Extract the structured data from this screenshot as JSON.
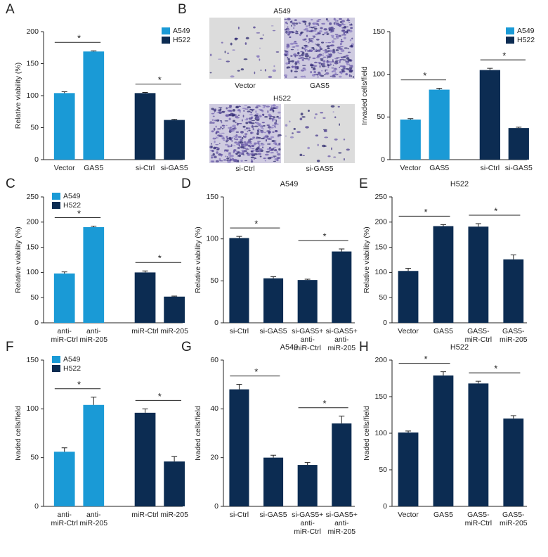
{
  "chart_data": [
    {
      "type": "bar",
      "panel": "A",
      "ylabel": "Relative viability (%)",
      "ylim": [
        0,
        200
      ],
      "yticks": [
        0,
        50,
        100,
        150,
        200
      ],
      "legend": "upper right",
      "categories": [
        [
          "Vector"
        ],
        [
          "GAS5"
        ],
        [
          "si-Ctrl"
        ],
        [
          "si-GAS5"
        ]
      ],
      "series": [
        {
          "name": "A549",
          "color": "#1a9ad6",
          "values": [
            104,
            169,
            null,
            null
          ],
          "errors": [
            2,
            1,
            null,
            null
          ]
        },
        {
          "name": "H522",
          "color": "#0c2c52",
          "values": [
            null,
            null,
            104,
            62
          ],
          "errors": [
            null,
            null,
            1,
            1
          ]
        }
      ],
      "annotations": [
        "*",
        "*"
      ]
    },
    {
      "type": "bar",
      "panel": "B",
      "ylabel": "Invaded cells/field",
      "ylim": [
        0,
        150
      ],
      "yticks": [
        0,
        50,
        100,
        150
      ],
      "legend": "upper right",
      "categories": [
        [
          "Vector"
        ],
        [
          "GAS5"
        ],
        [
          "si-Ctrl"
        ],
        [
          "si-GAS5"
        ]
      ],
      "series": [
        {
          "name": "A549",
          "color": "#1a9ad6",
          "values": [
            47,
            82,
            null,
            null
          ],
          "errors": [
            1,
            1.5,
            null,
            null
          ]
        },
        {
          "name": "H522",
          "color": "#0c2c52",
          "values": [
            null,
            null,
            105,
            37
          ],
          "errors": [
            null,
            null,
            2,
            1
          ]
        }
      ],
      "annotations": [
        "*",
        "*"
      ]
    },
    {
      "type": "bar",
      "panel": "C",
      "ylabel": "Relative viability (%)",
      "ylim": [
        0,
        250
      ],
      "yticks": [
        0,
        50,
        100,
        150,
        200,
        250
      ],
      "legend": "upper left",
      "categories": [
        [
          "anti-",
          "miR-Ctrl"
        ],
        [
          "anti-",
          "miR-205"
        ],
        [
          "miR-Ctrl"
        ],
        [
          "miR-205"
        ]
      ],
      "series": [
        {
          "name": "A549",
          "color": "#1a9ad6",
          "values": [
            98,
            190,
            null,
            null
          ],
          "errors": [
            3,
            2,
            null,
            null
          ]
        },
        {
          "name": "H522",
          "color": "#0c2c52",
          "values": [
            null,
            null,
            100,
            52
          ],
          "errors": [
            null,
            null,
            3,
            1
          ]
        }
      ],
      "annotations": [
        "*",
        "*"
      ]
    },
    {
      "type": "bar",
      "panel": "D",
      "title": "A549",
      "ylabel": "Relative viability (%)",
      "ylim": [
        0,
        150
      ],
      "yticks": [
        0,
        50,
        100,
        150
      ],
      "color": "#0c2c52",
      "categories": [
        [
          "si-Ctrl"
        ],
        [
          "si-GAS5"
        ],
        [
          "si-GAS5+",
          "anti-",
          "miR-Ctrl"
        ],
        [
          "si-GAS5+",
          "anti-",
          "miR-205"
        ]
      ],
      "values": [
        101,
        53,
        51,
        85
      ],
      "errors": [
        2,
        2,
        1,
        3
      ],
      "annotations": [
        "*",
        "*"
      ]
    },
    {
      "type": "bar",
      "panel": "E",
      "title": "H522",
      "ylabel": "Relative viability (%)",
      "ylim": [
        0,
        250
      ],
      "yticks": [
        0,
        50,
        100,
        150,
        200,
        250
      ],
      "color": "#0c2c52",
      "categories": [
        [
          "Vector"
        ],
        [
          "GAS5"
        ],
        [
          "GAS5-",
          "miR-Ctrl"
        ],
        [
          "GAS5-",
          "miR-205"
        ]
      ],
      "values": [
        103,
        192,
        191,
        126
      ],
      "errors": [
        5,
        3,
        6,
        9
      ],
      "annotations": [
        "*",
        "*"
      ]
    },
    {
      "type": "bar",
      "panel": "F",
      "ylabel": "Ivaded cells/field",
      "ylim": [
        0,
        150
      ],
      "yticks": [
        0,
        50,
        100,
        150
      ],
      "legend": "upper left",
      "categories": [
        [
          "anti-",
          "miR-Ctrl"
        ],
        [
          "anti-",
          "miR-205"
        ],
        [
          "miR-Ctrl"
        ],
        [
          "miR-205"
        ]
      ],
      "series": [
        {
          "name": "A549",
          "color": "#1a9ad6",
          "values": [
            56,
            104,
            null,
            null
          ],
          "errors": [
            4,
            8,
            null,
            null
          ]
        },
        {
          "name": "H522",
          "color": "#0c2c52",
          "values": [
            null,
            null,
            96,
            46
          ],
          "errors": [
            null,
            null,
            4,
            5
          ]
        }
      ],
      "annotations": [
        "*",
        "*"
      ]
    },
    {
      "type": "bar",
      "panel": "G",
      "title": "A549",
      "ylabel": "Ivaded cells/field",
      "ylim": [
        0,
        60
      ],
      "yticks": [
        0,
        20,
        40,
        60
      ],
      "color": "#0c2c52",
      "categories": [
        [
          "si-Ctrl"
        ],
        [
          "si-GAS5"
        ],
        [
          "si-GAS5+",
          "anti-",
          "miR-Ctrl"
        ],
        [
          "si-GAS5+",
          "anti-",
          "miR-205"
        ]
      ],
      "values": [
        48,
        20,
        17,
        34
      ],
      "errors": [
        2,
        1,
        1,
        3
      ],
      "annotations": [
        "*",
        "*"
      ]
    },
    {
      "type": "bar",
      "panel": "H",
      "title": "H522",
      "ylabel": "Ivaded cells/field",
      "ylim": [
        0,
        200
      ],
      "yticks": [
        0,
        50,
        100,
        150,
        200
      ],
      "color": "#0c2c52",
      "categories": [
        [
          "Vector"
        ],
        [
          "GAS5"
        ],
        [
          "GAS5-",
          "miR-Ctrl"
        ],
        [
          "GAS5-",
          "miR-205"
        ]
      ],
      "values": [
        101,
        179,
        168,
        120
      ],
      "errors": [
        2,
        5,
        3,
        4
      ],
      "annotations": [
        "*",
        "*"
      ]
    }
  ],
  "micrographs": [
    {
      "title": "A549",
      "labels": [
        "Vector",
        "GAS5"
      ]
    },
    {
      "title": "H522",
      "labels": [
        "si-Ctrl",
        "si-GAS5"
      ]
    }
  ]
}
